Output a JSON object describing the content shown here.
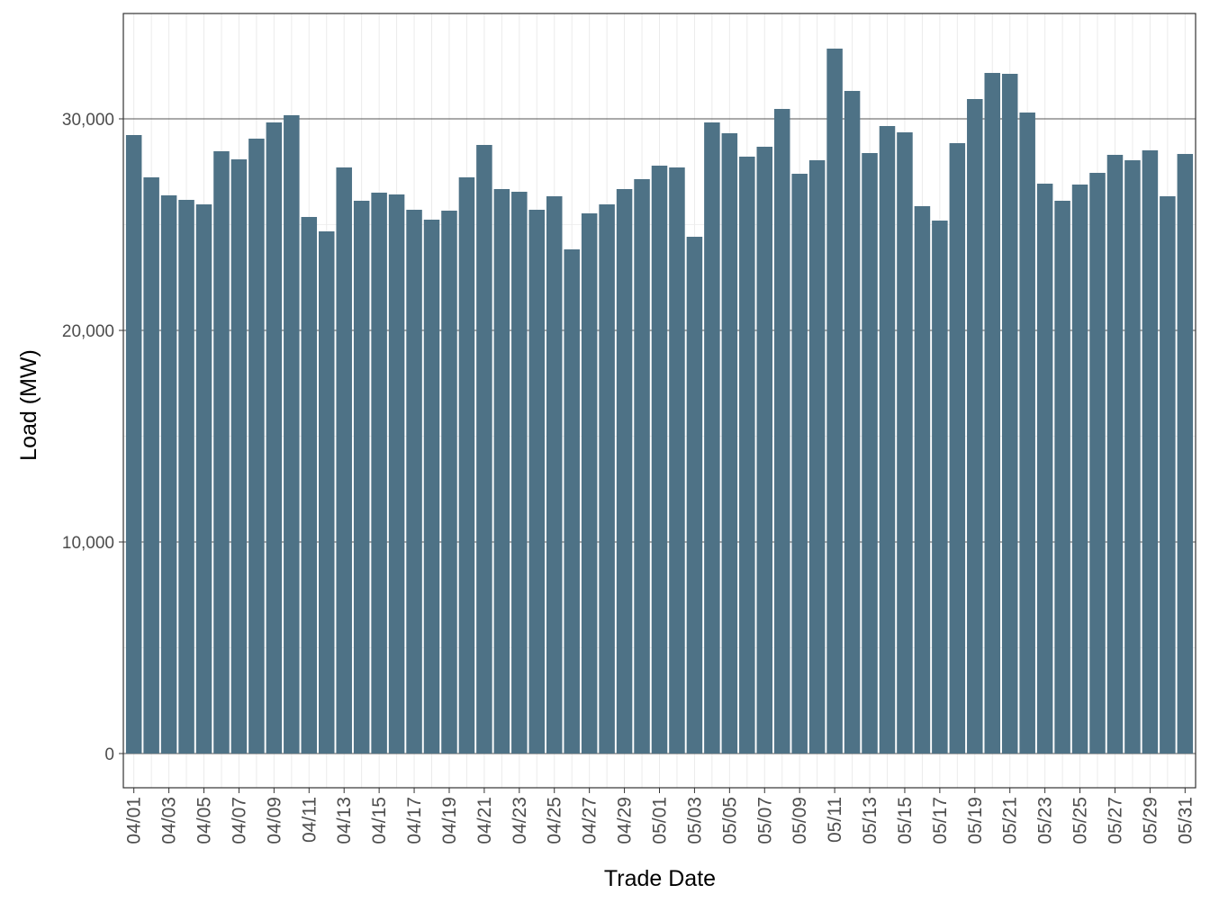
{
  "chart_data": {
    "type": "bar",
    "x_label": "Trade Date",
    "y_label": "Load (MW)",
    "categories": [
      "04/01",
      null,
      "04/03",
      null,
      "04/05",
      null,
      "04/07",
      null,
      "04/09",
      null,
      "04/11",
      null,
      "04/13",
      null,
      "04/15",
      null,
      "04/17",
      null,
      "04/19",
      null,
      "04/21",
      null,
      "04/23",
      null,
      "04/25",
      null,
      "04/27",
      null,
      "04/29",
      null,
      "05/01",
      null,
      "05/03",
      null,
      "05/05",
      null,
      "05/07",
      null,
      "05/09",
      null,
      "05/11",
      null,
      "05/13",
      null,
      "05/15",
      null,
      "05/17",
      null,
      "05/19",
      null,
      "05/21",
      null,
      "05/23",
      null,
      "05/25",
      null,
      "05/27",
      null,
      "05/29",
      null,
      "05/31"
    ],
    "values": [
      29234,
      27234,
      26383,
      26170,
      25957,
      28468,
      28085,
      29064,
      29830,
      30170,
      25362,
      24681,
      27702,
      26128,
      26511,
      26426,
      25702,
      25234,
      25660,
      27234,
      28766,
      26681,
      26553,
      25702,
      26340,
      23830,
      25532,
      25957,
      26681,
      27149,
      27787,
      27702,
      24426,
      29830,
      29319,
      28213,
      28681,
      30468,
      27404,
      28043,
      33319,
      31319,
      28383,
      29660,
      29362,
      25872,
      25191,
      28851,
      30936,
      32170,
      32128,
      30298,
      26936,
      26128,
      26894,
      27447,
      28298,
      28043,
      28511,
      26340,
      28340
    ],
    "color": "#4e7286",
    "ylim": [
      -1617,
      34979
    ],
    "yticks": [
      0,
      {
        "value": 10000,
        "label": "10,000"
      },
      {
        "value": 20000,
        "label": "20,000"
      },
      {
        "value": 30000,
        "label": "30,000"
      }
    ],
    "yminor": [
      5000,
      15000,
      25000
    ],
    "grid": true
  }
}
